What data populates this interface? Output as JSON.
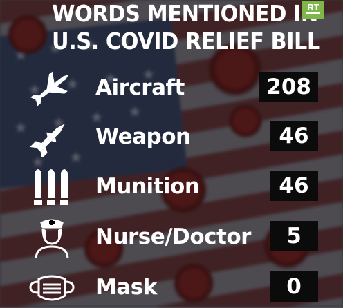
{
  "title": {
    "line1": "WORDS MENTIONED IN",
    "line2": "U.S. COVID RELIEF BILL"
  },
  "logo": {
    "text": "RT",
    "color": "#7fb64a"
  },
  "items": [
    {
      "label": "Aircraft",
      "count": "208",
      "icon": "fighter-jet-icon"
    },
    {
      "label": "Weapon",
      "count": "46",
      "icon": "missile-icon"
    },
    {
      "label": "Munition",
      "count": "46",
      "icon": "bullets-icon"
    },
    {
      "label": "Nurse/Doctor",
      "count": "5",
      "icon": "nurse-icon"
    },
    {
      "label": "Mask",
      "count": "0",
      "icon": "face-mask-icon"
    }
  ]
}
